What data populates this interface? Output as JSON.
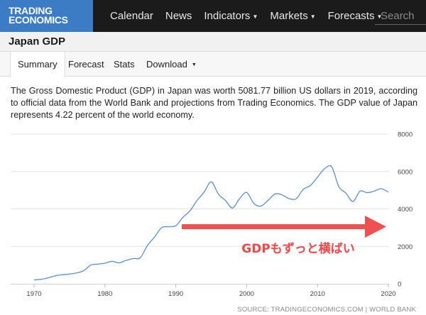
{
  "logo": {
    "line1": "TRADING",
    "line2": "ECONOMICS"
  },
  "nav": [
    {
      "label": "Calendar",
      "dropdown": false
    },
    {
      "label": "News",
      "dropdown": false
    },
    {
      "label": "Indicators",
      "dropdown": true
    },
    {
      "label": "Markets",
      "dropdown": true
    },
    {
      "label": "Forecasts",
      "dropdown": true
    }
  ],
  "search": {
    "placeholder": "Search"
  },
  "page": {
    "title": "Japan GDP"
  },
  "tabs": [
    {
      "label": "Summary",
      "active": true
    },
    {
      "label": "Forecast",
      "active": false
    },
    {
      "label": "Stats",
      "active": false
    },
    {
      "label": "Download",
      "active": false,
      "dropdown": true
    }
  ],
  "description": "The Gross Domestic Product (GDP) in Japan was worth 5081.77 billion US dollars in 2019, according to official data from the World Bank and projections from Trading Economics. The GDP value of Japan represents 4.22 percent of the world economy.",
  "annotation": {
    "text": "GDPもずっと横ばい",
    "color": "#f04848"
  },
  "source": "SOURCE: TRADINGECONOMICS.COM | WORLD BANK",
  "colors": {
    "line": "#5b8fd4",
    "nav_bg": "#1b1b1b",
    "logo_bg": "#3c7cc4",
    "grid": "#e4e4e4"
  },
  "chart_data": {
    "type": "line",
    "title": "",
    "xlabel": "",
    "ylabel": "",
    "xlim": [
      1970,
      2020
    ],
    "ylim": [
      0,
      8000
    ],
    "x_ticks": [
      1970,
      1980,
      1990,
      2000,
      2010,
      2020
    ],
    "y_ticks": [
      0,
      2000,
      4000,
      6000,
      8000
    ],
    "y_axis_side": "right",
    "grid": true,
    "series": [
      {
        "x": [
          1970,
          1971,
          1972,
          1973,
          1974,
          1975,
          1976,
          1977,
          1978,
          1979,
          1980,
          1981,
          1982,
          1983,
          1984,
          1985,
          1986,
          1987,
          1988,
          1989,
          1990,
          1991,
          1992,
          1993,
          1994,
          1995,
          1996,
          1997,
          1998,
          1999,
          2000,
          2001,
          2002,
          2003,
          2004,
          2005,
          2006,
          2007,
          2008,
          2009,
          2010,
          2011,
          2012,
          2013,
          2014,
          2015,
          2016,
          2017,
          2018,
          2019,
          2020
        ],
        "y": [
          210,
          240,
          320,
          430,
          480,
          520,
          580,
          700,
          1000,
          1050,
          1100,
          1200,
          1120,
          1250,
          1350,
          1400,
          2050,
          2500,
          3000,
          3050,
          3100,
          3550,
          3900,
          4450,
          4900,
          5450,
          4800,
          4450,
          4050,
          4550,
          4880,
          4300,
          4150,
          4450,
          4800,
          4750,
          4550,
          4550,
          5050,
          5250,
          5700,
          6150,
          6250,
          5200,
          4850,
          4400,
          4950,
          4870,
          4950,
          5082,
          4900
        ]
      }
    ]
  }
}
